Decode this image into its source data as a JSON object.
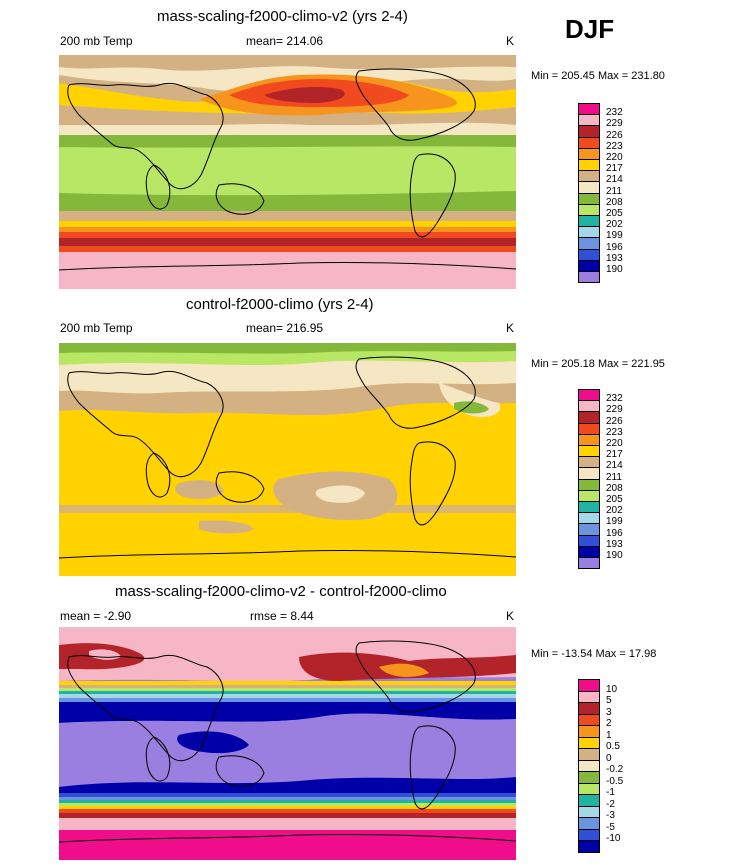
{
  "season": "DJF",
  "panels": [
    {
      "title": "mass-scaling-f2000-climo-v2 (yrs 2-4)",
      "left": "200 mb Temp",
      "center": "mean= 214.06",
      "units": "K",
      "minmax": "Min = 205.45 Max = 231.80",
      "legend": [
        "232",
        "229",
        "226",
        "223",
        "220",
        "217",
        "214",
        "211",
        "208",
        "205",
        "202",
        "199",
        "196",
        "193",
        "190"
      ]
    },
    {
      "title": "control-f2000-climo (yrs 2-4)",
      "left": "200 mb Temp",
      "center": "mean= 216.95",
      "units": "K",
      "minmax": "Min = 205.18 Max = 221.95",
      "legend": [
        "232",
        "229",
        "226",
        "223",
        "220",
        "217",
        "214",
        "211",
        "208",
        "205",
        "202",
        "199",
        "196",
        "193",
        "190"
      ]
    },
    {
      "title": "mass-scaling-f2000-climo-v2 - control-f2000-climo",
      "left": "mean =  -2.90",
      "center": "rmse =   8.44",
      "units": "K",
      "minmax": "Min = -13.54 Max =  17.98",
      "legend": [
        "10",
        "5",
        "3",
        "2",
        "1",
        "0.5",
        "0",
        "-0.2",
        "-0.5",
        "-1",
        "-2",
        "-3",
        "-5",
        "-10"
      ]
    }
  ],
  "colors": {
    "temp_scale": [
      "#f00d8c",
      "#f7b6c5",
      "#b3242a",
      "#f04a1e",
      "#f7941d",
      "#ffd200",
      "#d4b183",
      "#f5e6c4",
      "#84b83a",
      "#b8e665",
      "#1fb3a3",
      "#a2d8e8",
      "#6b93e0",
      "#3050d6",
      "#0000a8",
      "#9a7ee0"
    ],
    "diff_scale": [
      "#f00d8c",
      "#f7b6c5",
      "#b3242a",
      "#f04a1e",
      "#f7941d",
      "#ffd200",
      "#d4b183",
      "#f5e6c4",
      "#84b83a",
      "#b8e665",
      "#1fb3a3",
      "#a2d8e8",
      "#6b93e0",
      "#3050d6",
      "#0000a8",
      "#9a7ee0"
    ]
  },
  "chart_data": [
    {
      "type": "heatmap",
      "title": "mass-scaling-f2000-climo-v2 (yrs 2-4)",
      "variable": "200 mb Temp",
      "mean": 214.06,
      "units": "K",
      "min": 205.45,
      "max": 231.8,
      "levels": [
        190,
        193,
        196,
        199,
        202,
        205,
        208,
        211,
        214,
        217,
        220,
        223,
        226,
        229,
        232
      ]
    },
    {
      "type": "heatmap",
      "title": "control-f2000-climo (yrs 2-4)",
      "variable": "200 mb Temp",
      "mean": 216.95,
      "units": "K",
      "min": 205.18,
      "max": 221.95,
      "levels": [
        190,
        193,
        196,
        199,
        202,
        205,
        208,
        211,
        214,
        217,
        220,
        223,
        226,
        229,
        232
      ]
    },
    {
      "type": "heatmap",
      "title": "mass-scaling-f2000-climo-v2 - control-f2000-climo",
      "mean": -2.9,
      "rmse": 8.44,
      "units": "K",
      "min": -13.54,
      "max": 17.98,
      "levels": [
        -10,
        -5,
        -3,
        -2,
        -1,
        -0.5,
        -0.2,
        0,
        0.5,
        1,
        2,
        3,
        5,
        10
      ]
    }
  ]
}
